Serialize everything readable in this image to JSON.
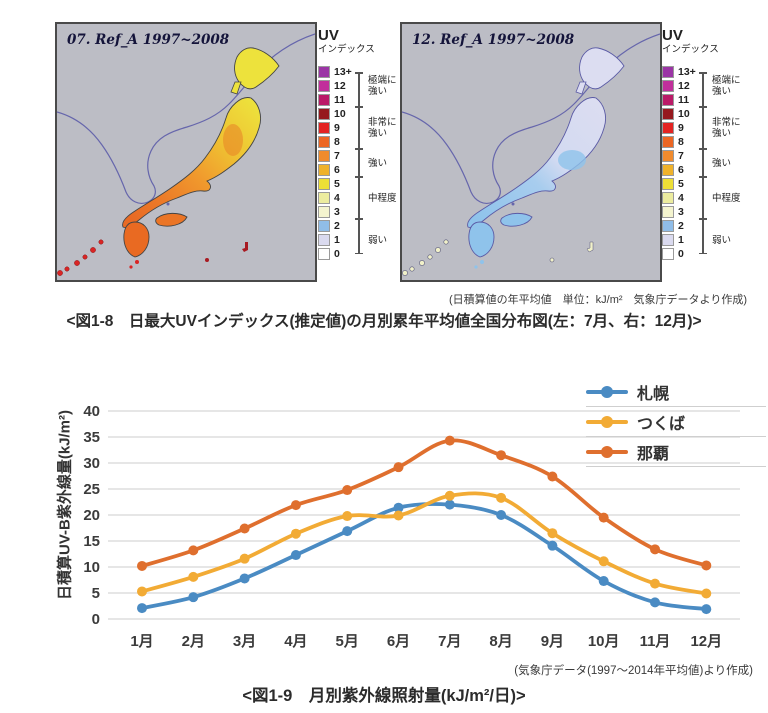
{
  "figure8": {
    "map_left": {
      "title": "07. Ref_A 1997~2008"
    },
    "map_right": {
      "title": "12. Ref_A 1997~2008"
    },
    "uv_legend": {
      "title": "UV",
      "subtitle": "インデックス",
      "entries": [
        {
          "value": "13+",
          "color": "#9b35a5"
        },
        {
          "value": "12",
          "color": "#c12f9b"
        },
        {
          "value": "11",
          "color": "#ba1a67"
        },
        {
          "value": "10",
          "color": "#96191e"
        },
        {
          "value": "9",
          "color": "#e32322"
        },
        {
          "value": "8",
          "color": "#ec6623"
        },
        {
          "value": "7",
          "color": "#f08b2d"
        },
        {
          "value": "6",
          "color": "#efb22b"
        },
        {
          "value": "5",
          "color": "#eddf36"
        },
        {
          "value": "4",
          "color": "#ecec9f"
        },
        {
          "value": "3",
          "color": "#f4f4cf"
        },
        {
          "value": "2",
          "color": "#90bde8"
        },
        {
          "value": "1",
          "color": "#dadaef"
        },
        {
          "value": "0",
          "color": "#ffffff"
        }
      ],
      "groups": [
        {
          "lines": [
            "極端に",
            "強い"
          ],
          "from": 0,
          "to": 2
        },
        {
          "lines": [
            "非常に",
            "強い"
          ],
          "from": 3,
          "to": 5
        },
        {
          "lines": [
            "強い"
          ],
          "from": 6,
          "to": 7
        },
        {
          "lines": [
            "中程度"
          ],
          "from": 8,
          "to": 10
        },
        {
          "lines": [
            "弱い"
          ],
          "from": 11,
          "to": 13
        }
      ]
    },
    "note": "(日積算値の年平均値　単位：kJ/m²　気象庁データより作成)",
    "caption": "<図1-8　日最大UVインデックス(推定値)の月別累年平均値全国分布図(左：7月、右：12月)>"
  },
  "figure9": {
    "note": "(気象庁データ(1997〜2014年平均値)より作成)",
    "caption": "<図1-9　月別紫外線照射量(kJ/m²/日)>"
  },
  "chart_data": {
    "type": "line",
    "categories": [
      "1月",
      "2月",
      "3月",
      "4月",
      "5月",
      "6月",
      "7月",
      "8月",
      "9月",
      "10月",
      "11月",
      "12月"
    ],
    "series": [
      {
        "name": "札幌",
        "color": "#4a8bc3",
        "values": [
          2.1,
          4.2,
          7.8,
          12.3,
          16.9,
          21.4,
          22.0,
          20.0,
          14.1,
          7.3,
          3.2,
          1.9
        ]
      },
      {
        "name": "つくば",
        "color": "#f2ab35",
        "values": [
          5.3,
          8.1,
          11.6,
          16.4,
          19.8,
          19.9,
          23.7,
          23.3,
          16.5,
          11.1,
          6.8,
          4.9
        ]
      },
      {
        "name": "那覇",
        "color": "#df6f2e",
        "values": [
          10.2,
          13.2,
          17.4,
          21.9,
          24.8,
          29.2,
          34.3,
          31.5,
          27.4,
          19.5,
          13.4,
          10.3
        ]
      }
    ],
    "ylabel": "日積算UV-B紫外線量(kJ/m²)",
    "ylim": [
      0,
      40
    ],
    "ytick_step": 5,
    "grid": true,
    "grid_color": "#d8d8d8",
    "text_color": "#3b3b3b",
    "legend_position": "top-right"
  }
}
